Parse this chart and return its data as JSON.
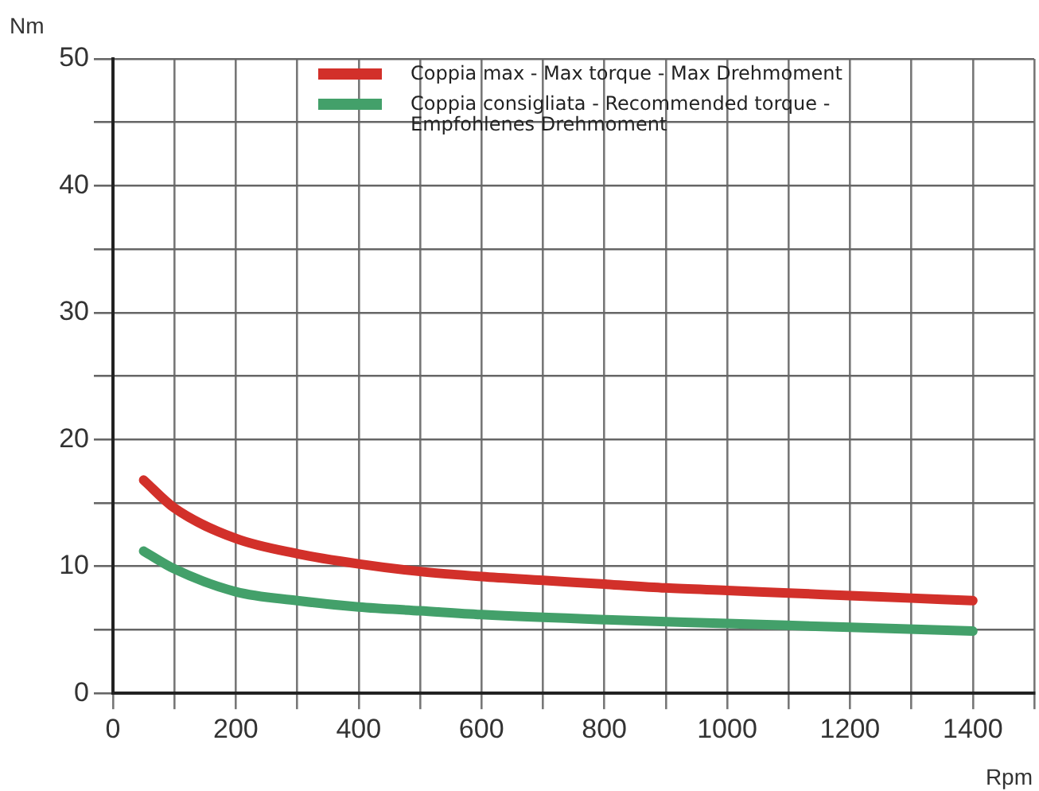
{
  "chart_data": {
    "type": "line",
    "xlabel": "Rpm",
    "ylabel": "Nm",
    "xlim": [
      0,
      1500
    ],
    "xticks": [
      0,
      {
        "value": 100,
        "label": null
      },
      200,
      {
        "value": 300,
        "label": null
      },
      400,
      {
        "value": 500,
        "label": null
      },
      600,
      {
        "value": 700,
        "label": null
      },
      800,
      {
        "value": 900,
        "label": null
      },
      1000,
      {
        "value": 1100,
        "label": null
      },
      1200,
      {
        "value": 1300,
        "label": null
      },
      1400,
      {
        "value": 1500,
        "label": null
      }
    ],
    "ylim": [
      0,
      50
    ],
    "yticks": [
      0,
      {
        "value": 5,
        "label": null
      },
      10,
      {
        "value": 15,
        "label": null
      },
      20,
      {
        "value": 25,
        "label": null
      },
      30,
      {
        "value": 35,
        "label": null
      },
      40,
      {
        "value": 45,
        "label": null
      },
      50
    ],
    "grid": true,
    "legend": "top right",
    "marker": "none",
    "line_style": "solid",
    "series": [
      {
        "name": "Coppia max - Max torque - Max Drehmoment",
        "color": "#d2302a",
        "x": [
          50,
          100,
          200,
          300,
          400,
          500,
          600,
          700,
          800,
          900,
          1000,
          1100,
          1200,
          1300,
          1400
        ],
        "values": [
          16.8,
          14.6,
          12.2,
          11.0,
          10.2,
          9.6,
          9.2,
          8.9,
          8.6,
          8.3,
          8.1,
          7.9,
          7.7,
          7.5,
          7.3
        ]
      },
      {
        "name": "Coppia consigliata - Recommended torque - Empfohlenes Drehmoment",
        "color": "#43a06a",
        "x": [
          50,
          100,
          200,
          300,
          400,
          500,
          600,
          800,
          1000,
          1200,
          1400
        ],
        "values": [
          11.2,
          9.8,
          8.0,
          7.3,
          6.8,
          6.5,
          6.2,
          5.8,
          5.5,
          5.2,
          4.9
        ]
      }
    ]
  }
}
